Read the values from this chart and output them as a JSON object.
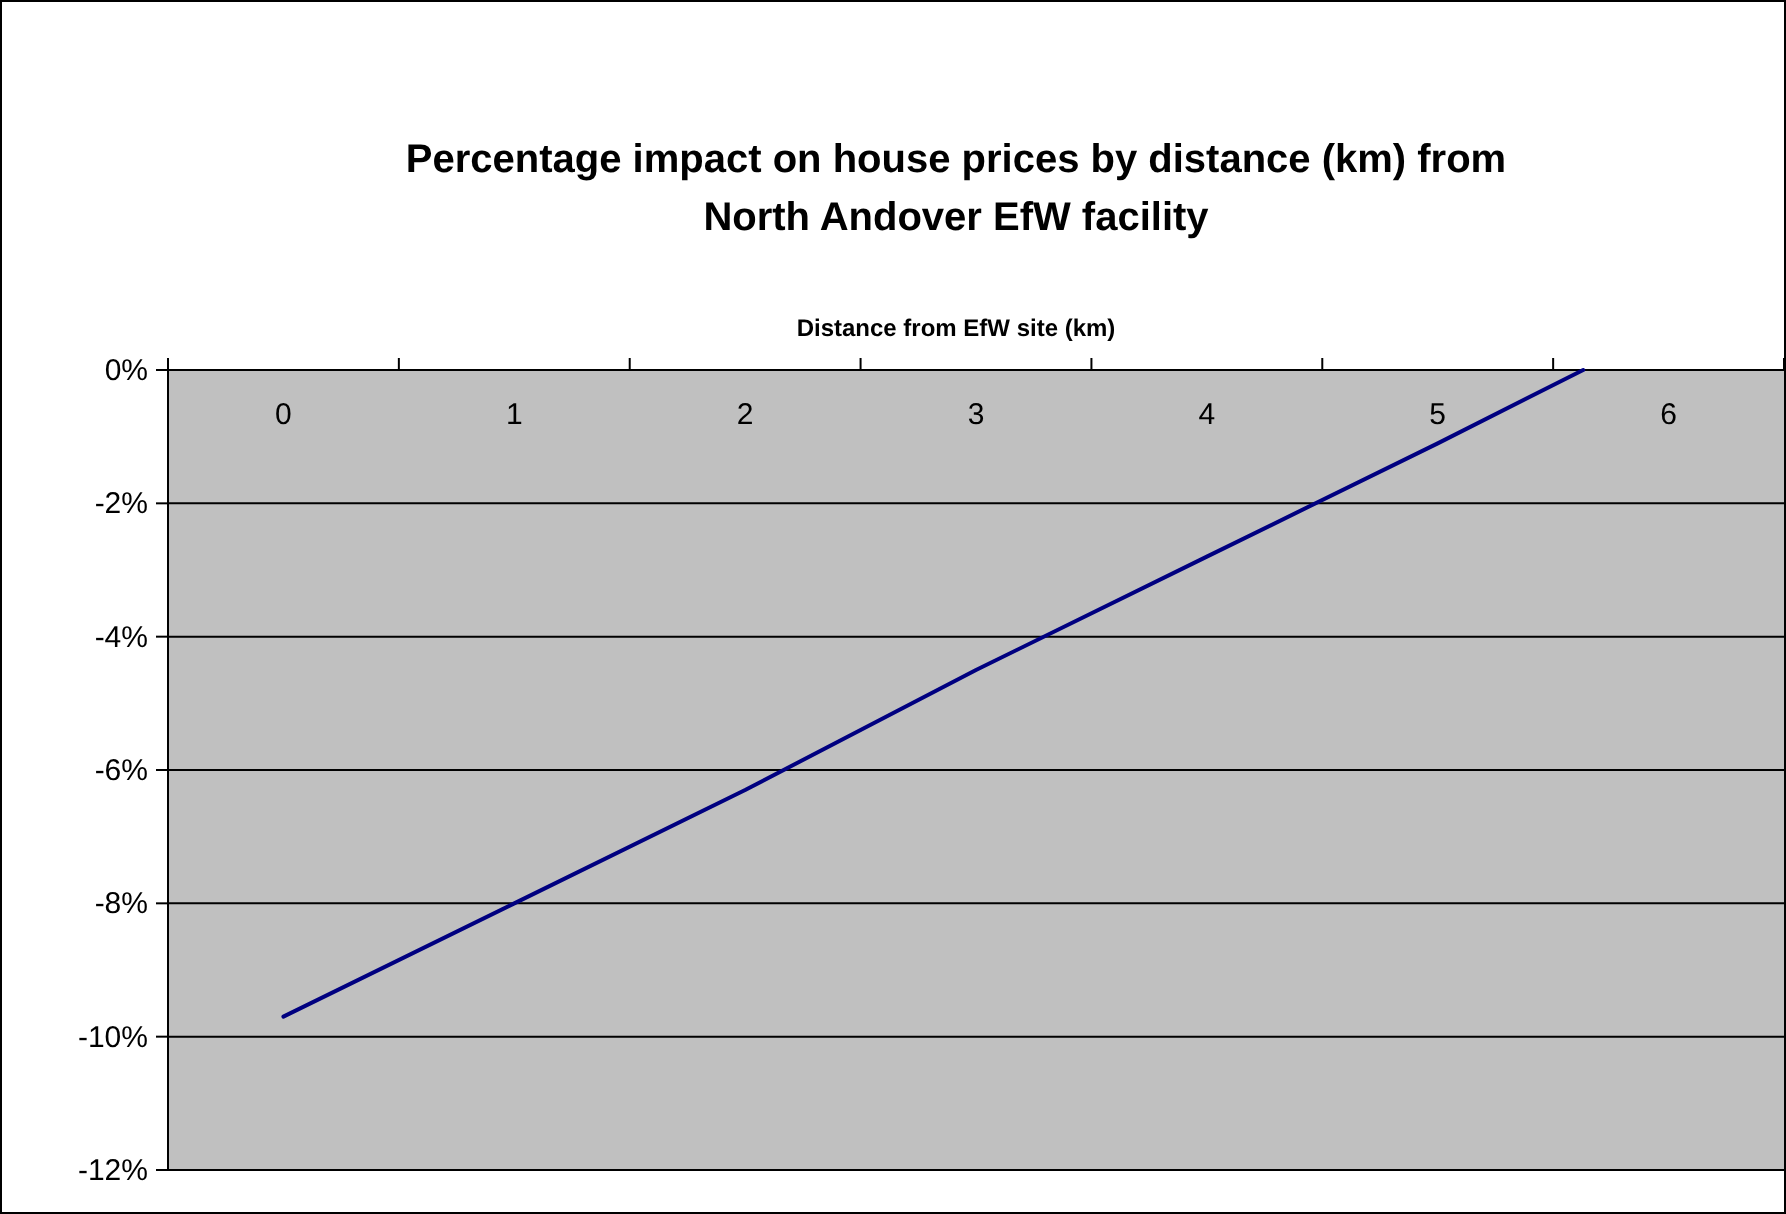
{
  "chart_data": {
    "type": "line",
    "title": "Percentage impact on house prices by distance (km) from North Andover EfW facility",
    "xlabel": "Distance from EfW site (km)",
    "x": [
      0,
      1,
      2,
      3,
      4,
      5,
      5.63
    ],
    "series": [
      {
        "color": "#000080",
        "values": [
          -9.7,
          -8.0,
          -6.3,
          -4.5,
          -2.8,
          -1.1,
          0
        ]
      }
    ],
    "xlim": [
      -0.5,
      6.5
    ],
    "xticks": [
      {
        "value": -0.5,
        "label": null
      },
      0,
      {
        "value": 0.5,
        "label": null
      },
      1,
      {
        "value": 1.5,
        "label": null
      },
      2,
      {
        "value": 2.5,
        "label": null
      },
      3,
      {
        "value": 3.5,
        "label": null
      },
      4,
      {
        "value": 4.5,
        "label": null
      },
      5,
      {
        "value": 5.5,
        "label": null
      },
      6,
      {
        "value": 6.5,
        "label": null
      }
    ],
    "ylim": [
      -12,
      0
    ],
    "yticks": [
      {
        "value": -12,
        "label": "-12%"
      },
      {
        "value": -10,
        "label": "-10%"
      },
      {
        "value": -8,
        "label": "-8%"
      },
      {
        "value": -6,
        "label": "-6%"
      },
      {
        "value": -4,
        "label": "-4%"
      },
      {
        "value": -2,
        "label": "-2%"
      },
      {
        "value": 0,
        "label": "0%"
      }
    ],
    "grid": "y",
    "marker": "none",
    "line_style": "solid"
  }
}
